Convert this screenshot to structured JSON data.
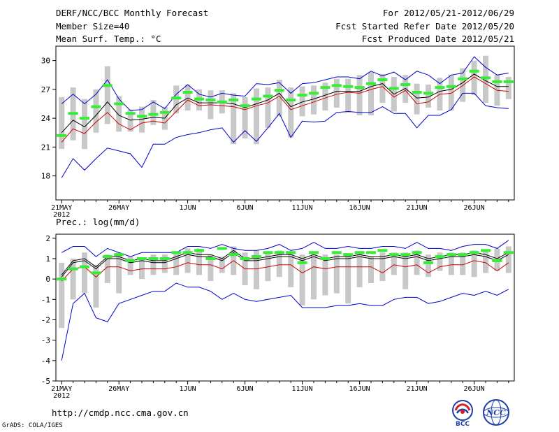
{
  "header": {
    "title": "DERF/NCC/BCC Monthly Forecast",
    "member_size": "Member Size=40",
    "variable": "Mean Surf. Temp.: °C",
    "period": "For 2012/05/21-2012/06/29",
    "start_date": "Fcst Started Refer Date 2012/05/20",
    "produced_date": "Fcst Produced Date 2012/05/21"
  },
  "footer": {
    "url": "http://cmdp.ncc.cma.gov.cn",
    "credit": "GrADS: COLA/IGES",
    "logo_left": "BCC",
    "logo_right": "NCC"
  },
  "colors": {
    "ensemble_max_min": "#0000cc",
    "ensemble_mean": "#000000",
    "median": "#cc0000",
    "box": "#c8c8c8",
    "marker": "#33ee33",
    "axis": "#000000"
  },
  "chart_data": [
    {
      "type": "line",
      "title": "Mean Surf. Temp.: °C",
      "x": [
        "5/21",
        "5/22",
        "5/23",
        "5/24",
        "5/25",
        "5/26",
        "5/27",
        "5/28",
        "5/29",
        "5/30",
        "5/31",
        "6/1",
        "6/2",
        "6/3",
        "6/4",
        "6/5",
        "6/6",
        "6/7",
        "6/8",
        "6/9",
        "6/10",
        "6/11",
        "6/12",
        "6/13",
        "6/14",
        "6/15",
        "6/16",
        "6/17",
        "6/18",
        "6/19",
        "6/20",
        "6/21",
        "6/22",
        "6/23",
        "6/24",
        "6/25",
        "6/26",
        "6/27",
        "6/28",
        "6/29"
      ],
      "x_tick_labels": [
        "21MAY",
        "26MAY",
        "1JUN",
        "6JUN",
        "11JUN",
        "16JUN",
        "21JUN",
        "26JUN"
      ],
      "x_tick_indices": [
        0,
        5,
        11,
        16,
        21,
        26,
        31,
        36
      ],
      "year_label": "2012",
      "ylim": [
        15.5,
        31.5
      ],
      "y_ticks": [
        18,
        21,
        24,
        27,
        30
      ],
      "series": [
        {
          "name": "max",
          "color": "#0000cc",
          "values": [
            25.5,
            26.5,
            25.5,
            26.5,
            28.0,
            26.0,
            24.8,
            24.9,
            25.7,
            25.0,
            26.5,
            27.5,
            26.5,
            26.2,
            26.6,
            26.4,
            26.3,
            27.6,
            27.5,
            27.7,
            26.6,
            27.6,
            27.7,
            28.0,
            28.3,
            28.3,
            28.1,
            28.9,
            28.4,
            28.8,
            28.0,
            28.9,
            28.5,
            27.6,
            28.5,
            28.7,
            30.4,
            29.3,
            28.5,
            28.7
          ]
        },
        {
          "name": "mean",
          "color": "#000000",
          "values": [
            22.5,
            23.8,
            23.1,
            24.3,
            25.7,
            24.3,
            23.8,
            23.9,
            24.1,
            24.0,
            25.4,
            26.1,
            25.6,
            25.6,
            25.6,
            25.5,
            25.1,
            25.5,
            25.9,
            26.6,
            25.2,
            25.7,
            26.0,
            26.4,
            26.8,
            26.8,
            26.8,
            27.3,
            27.6,
            26.5,
            27.1,
            26.1,
            26.2,
            26.8,
            27.0,
            27.7,
            28.6,
            27.9,
            27.3,
            27.3
          ]
        },
        {
          "name": "median",
          "color": "#cc0000",
          "values": [
            21.5,
            22.9,
            22.4,
            23.6,
            24.6,
            23.4,
            22.8,
            23.5,
            23.7,
            23.5,
            24.7,
            25.9,
            25.3,
            25.4,
            25.3,
            25.2,
            24.9,
            25.3,
            25.6,
            26.3,
            24.9,
            25.3,
            25.7,
            26.1,
            26.5,
            26.7,
            26.6,
            27.0,
            27.3,
            26.2,
            26.9,
            25.5,
            25.7,
            26.5,
            26.6,
            27.4,
            28.3,
            27.6,
            26.9,
            26.8
          ]
        },
        {
          "name": "min",
          "color": "#0000cc",
          "values": [
            17.8,
            19.8,
            18.6,
            19.8,
            20.9,
            20.6,
            20.3,
            18.9,
            21.3,
            21.3,
            22.0,
            22.3,
            22.5,
            22.8,
            23.0,
            21.5,
            22.7,
            21.6,
            23.0,
            24.5,
            22.0,
            23.7,
            23.6,
            23.7,
            24.6,
            24.7,
            24.6,
            24.6,
            25.2,
            24.5,
            24.5,
            23.0,
            24.3,
            24.3,
            24.9,
            26.6,
            26.6,
            25.3,
            25.1,
            25.0
          ]
        }
      ],
      "boxes": [
        {
          "low": 20.8,
          "high": 26.2
        },
        {
          "low": 21.7,
          "high": 27.2
        },
        {
          "low": 20.8,
          "high": 26.0
        },
        {
          "low": 22.5,
          "high": 27.0
        },
        {
          "low": 23.4,
          "high": 29.4
        },
        {
          "low": 22.6,
          "high": 26.3
        },
        {
          "low": 22.6,
          "high": 24.9
        },
        {
          "low": 22.5,
          "high": 25.2
        },
        {
          "low": 23.3,
          "high": 25.9
        },
        {
          "low": 22.8,
          "high": 25.2
        },
        {
          "low": 24.5,
          "high": 27.4
        },
        {
          "low": 24.8,
          "high": 27.5
        },
        {
          "low": 24.8,
          "high": 27.0
        },
        {
          "low": 23.9,
          "high": 26.9
        },
        {
          "low": 24.5,
          "high": 26.9
        },
        {
          "low": 21.3,
          "high": 26.6
        },
        {
          "low": 21.9,
          "high": 26.2
        },
        {
          "low": 21.3,
          "high": 27.1
        },
        {
          "low": 23.0,
          "high": 27.2
        },
        {
          "low": 24.2,
          "high": 28.0
        },
        {
          "low": 22.0,
          "high": 27.2
        },
        {
          "low": 24.2,
          "high": 27.3
        },
        {
          "low": 24.4,
          "high": 27.4
        },
        {
          "low": 24.8,
          "high": 27.7
        },
        {
          "low": 25.1,
          "high": 28.1
        },
        {
          "low": 24.6,
          "high": 28.1
        },
        {
          "low": 24.3,
          "high": 28.5
        },
        {
          "low": 24.3,
          "high": 28.8
        },
        {
          "low": 25.6,
          "high": 28.6
        },
        {
          "low": 24.7,
          "high": 28.3
        },
        {
          "low": 25.6,
          "high": 28.5
        },
        {
          "low": 24.4,
          "high": 27.6
        },
        {
          "low": 25.1,
          "high": 27.5
        },
        {
          "low": 24.8,
          "high": 28.2
        },
        {
          "low": 24.8,
          "high": 28.5
        },
        {
          "low": 25.7,
          "high": 29.2
        },
        {
          "low": 26.4,
          "high": 30.0
        },
        {
          "low": 25.6,
          "high": 30.5
        },
        {
          "low": 25.3,
          "high": 28.5
        },
        {
          "low": 26.0,
          "high": 28.3
        }
      ],
      "markers": [
        22.2,
        24.5,
        24.0,
        25.2,
        27.4,
        25.5,
        24.5,
        24.2,
        24.4,
        24.6,
        26.1,
        26.7,
        26.0,
        25.9,
        25.7,
        25.9,
        25.3,
        26.0,
        26.3,
        26.9,
        25.9,
        26.4,
        26.6,
        27.2,
        27.4,
        27.3,
        27.2,
        27.6,
        28.0,
        27.1,
        27.5,
        26.7,
        26.6,
        27.2,
        27.3,
        28.1,
        28.9,
        28.2,
        27.8,
        27.8
      ]
    },
    {
      "type": "line",
      "title": "Prec.: log(mm/d)",
      "x": [
        "5/21",
        "5/22",
        "5/23",
        "5/24",
        "5/25",
        "5/26",
        "5/27",
        "5/28",
        "5/29",
        "5/30",
        "5/31",
        "6/1",
        "6/2",
        "6/3",
        "6/4",
        "6/5",
        "6/6",
        "6/7",
        "6/8",
        "6/9",
        "6/10",
        "6/11",
        "6/12",
        "6/13",
        "6/14",
        "6/15",
        "6/16",
        "6/17",
        "6/18",
        "6/19",
        "6/20",
        "6/21",
        "6/22",
        "6/23",
        "6/24",
        "6/25",
        "6/26",
        "6/27",
        "6/28",
        "6/29"
      ],
      "x_tick_labels": [
        "21MAY",
        "26MAY",
        "1JUN",
        "6JUN",
        "11JUN",
        "16JUN",
        "21JUN",
        "26JUN"
      ],
      "x_tick_indices": [
        0,
        5,
        11,
        16,
        21,
        26,
        31,
        36
      ],
      "year_label": "2012",
      "ylim": [
        -5,
        2.2
      ],
      "y_ticks": [
        -5,
        -4,
        -3,
        -2,
        -1,
        0,
        1,
        2
      ],
      "series": [
        {
          "name": "max",
          "color": "#0000cc",
          "values": [
            1.3,
            1.6,
            1.6,
            1.1,
            1.5,
            1.3,
            1.1,
            1.3,
            1.3,
            1.3,
            1.3,
            1.6,
            1.6,
            1.5,
            1.7,
            1.5,
            1.4,
            1.4,
            1.5,
            1.7,
            1.4,
            1.5,
            1.8,
            1.5,
            1.5,
            1.6,
            1.5,
            1.5,
            1.6,
            1.6,
            1.5,
            1.8,
            1.5,
            1.5,
            1.4,
            1.6,
            1.7,
            1.7,
            1.5,
            1.9
          ]
        },
        {
          "name": "mean",
          "color": "#000000",
          "values": [
            0.1,
            0.8,
            0.9,
            0.5,
            1.0,
            1.0,
            0.8,
            0.9,
            0.8,
            0.8,
            1.0,
            1.2,
            1.1,
            1.1,
            0.9,
            1.3,
            0.9,
            0.9,
            1.0,
            1.1,
            1.1,
            0.9,
            1.1,
            0.9,
            1.0,
            1.0,
            1.1,
            1.0,
            1.0,
            1.1,
            1.0,
            1.1,
            0.9,
            1.0,
            1.1,
            1.1,
            1.2,
            1.1,
            0.9,
            1.2
          ]
        },
        {
          "name": "median",
          "color": "#cc0000",
          "values": [
            -0.1,
            0.5,
            0.6,
            0.1,
            0.6,
            0.6,
            0.4,
            0.5,
            0.5,
            0.5,
            0.6,
            0.8,
            0.7,
            0.7,
            0.5,
            0.9,
            0.5,
            0.5,
            0.6,
            0.7,
            0.7,
            0.3,
            0.6,
            0.5,
            0.6,
            0.6,
            0.6,
            0.6,
            0.3,
            0.7,
            0.6,
            0.7,
            0.3,
            0.6,
            0.7,
            0.7,
            0.9,
            0.8,
            0.4,
            0.8
          ]
        },
        {
          "name": "min",
          "color": "#0000cc",
          "values": [
            -4.0,
            -1.2,
            -0.7,
            -1.9,
            -2.1,
            -1.2,
            -1.0,
            -0.8,
            -0.6,
            -0.6,
            -0.2,
            -0.4,
            -0.4,
            -0.6,
            -1.0,
            -0.7,
            -1.0,
            -1.1,
            -1.0,
            -0.9,
            -0.8,
            -1.4,
            -1.4,
            -1.4,
            -1.3,
            -1.3,
            -1.2,
            -1.3,
            -1.3,
            -1.0,
            -0.9,
            -0.9,
            -1.2,
            -1.1,
            -0.9,
            -0.7,
            -0.8,
            -0.6,
            -0.8,
            -0.5
          ]
        },
        {
          "name": "upper",
          "color": "#000000",
          "values": [
            0.2,
            0.9,
            1.0,
            0.6,
            1.1,
            1.1,
            0.9,
            1.0,
            0.9,
            0.9,
            1.1,
            1.3,
            1.2,
            1.2,
            1.0,
            1.4,
            1.0,
            1.0,
            1.1,
            1.2,
            1.2,
            1.0,
            1.2,
            1.0,
            1.1,
            1.1,
            1.2,
            1.1,
            1.1,
            1.2,
            1.1,
            1.2,
            1.0,
            1.1,
            1.2,
            1.2,
            1.3,
            1.2,
            1.0,
            1.3
          ]
        }
      ],
      "boxes": [
        {
          "low": -2.4,
          "high": 0.8
        },
        {
          "low": -1.0,
          "high": 1.0
        },
        {
          "low": -0.7,
          "high": 1.3
        },
        {
          "low": -1.4,
          "high": 0.7
        },
        {
          "low": -0.2,
          "high": 1.2
        },
        {
          "low": -0.7,
          "high": 1.3
        },
        {
          "low": 0.2,
          "high": 1.1
        },
        {
          "low": 0.0,
          "high": 1.0
        },
        {
          "low": 0.2,
          "high": 1.2
        },
        {
          "low": 0.3,
          "high": 1.2
        },
        {
          "low": 0.2,
          "high": 1.3
        },
        {
          "low": 0.3,
          "high": 1.5
        },
        {
          "low": 0.2,
          "high": 1.5
        },
        {
          "low": -0.1,
          "high": 1.2
        },
        {
          "low": 0.3,
          "high": 1.1
        },
        {
          "low": 0.2,
          "high": 1.6
        },
        {
          "low": -0.3,
          "high": 1.3
        },
        {
          "low": -0.5,
          "high": 1.4
        },
        {
          "low": -0.1,
          "high": 1.3
        },
        {
          "low": 0.1,
          "high": 1.4
        },
        {
          "low": -0.4,
          "high": 1.3
        },
        {
          "low": -1.3,
          "high": 1.2
        },
        {
          "low": -1.0,
          "high": 1.2
        },
        {
          "low": -0.8,
          "high": 1.2
        },
        {
          "low": -0.7,
          "high": 1.2
        },
        {
          "low": -1.2,
          "high": 1.2
        },
        {
          "low": -0.4,
          "high": 1.3
        },
        {
          "low": -0.2,
          "high": 1.1
        },
        {
          "low": -0.1,
          "high": 1.3
        },
        {
          "low": 0.2,
          "high": 1.3
        },
        {
          "low": -0.5,
          "high": 1.3
        },
        {
          "low": 0.2,
          "high": 1.4
        },
        {
          "low": 0.1,
          "high": 1.2
        },
        {
          "low": 0.4,
          "high": 1.3
        },
        {
          "low": 0.2,
          "high": 1.3
        },
        {
          "low": 0.2,
          "high": 1.3
        },
        {
          "low": 0.1,
          "high": 1.4
        },
        {
          "low": 0.3,
          "high": 1.4
        },
        {
          "low": 0.4,
          "high": 1.5
        },
        {
          "low": 0.3,
          "high": 1.6
        }
      ],
      "markers": [
        0.0,
        0.5,
        0.6,
        0.3,
        1.1,
        1.2,
        0.9,
        1.0,
        1.0,
        1.0,
        1.3,
        1.3,
        1.4,
        1.0,
        1.5,
        1.2,
        1.0,
        1.1,
        1.3,
        1.3,
        1.3,
        0.8,
        1.3,
        1.0,
        1.3,
        1.2,
        1.3,
        1.3,
        1.4,
        1.2,
        1.2,
        1.3,
        0.8,
        1.1,
        1.2,
        1.2,
        1.3,
        1.4,
        0.9,
        1.3
      ]
    }
  ]
}
